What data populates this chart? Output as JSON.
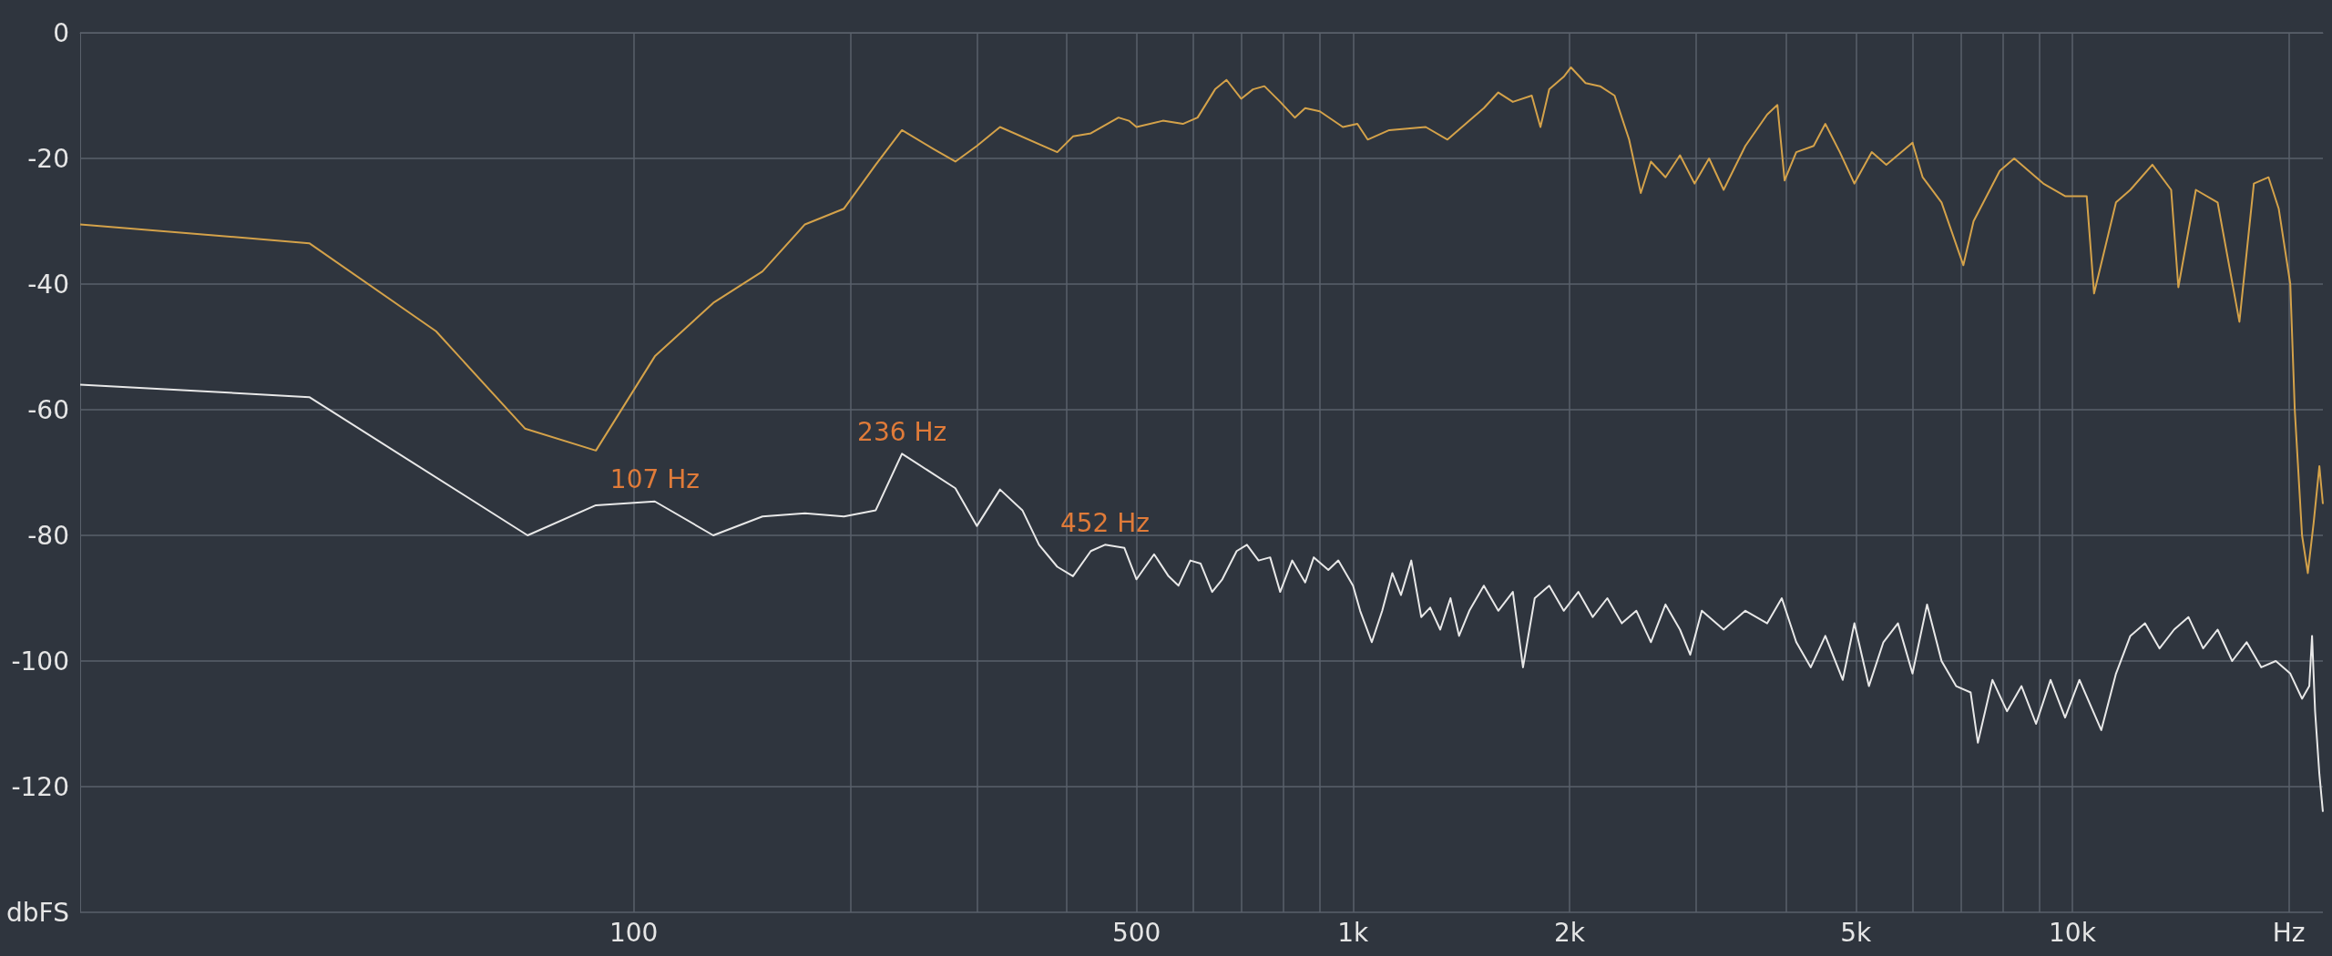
{
  "chart_data": {
    "type": "line",
    "log": "x",
    "grid": true,
    "line_style": "solid",
    "xlim": [
      17,
      22300
    ],
    "ylim": [
      -140,
      0
    ],
    "xticks": [
      {
        "value": 100,
        "label": "100"
      },
      {
        "value": 200,
        "label": null
      },
      {
        "value": 300,
        "label": null
      },
      {
        "value": 400,
        "label": null
      },
      {
        "value": 500,
        "label": "500"
      },
      {
        "value": 600,
        "label": null
      },
      {
        "value": 700,
        "label": null
      },
      {
        "value": 800,
        "label": null
      },
      {
        "value": 900,
        "label": null
      },
      {
        "value": 1000,
        "label": "1k"
      },
      {
        "value": 2000,
        "label": "2k"
      },
      {
        "value": 3000,
        "label": null
      },
      {
        "value": 4000,
        "label": null
      },
      {
        "value": 5000,
        "label": "5k"
      },
      {
        "value": 6000,
        "label": null
      },
      {
        "value": 7000,
        "label": null
      },
      {
        "value": 8000,
        "label": null
      },
      {
        "value": 9000,
        "label": null
      },
      {
        "value": 10000,
        "label": "10k"
      },
      {
        "value": 20000,
        "label": "Hz"
      }
    ],
    "yticks": [
      {
        "value": -140,
        "label": "dbFS"
      },
      -120,
      -100,
      -80,
      -60,
      -40,
      -20,
      0
    ],
    "annotations": [
      {
        "text": "107 Hz",
        "x": 107,
        "y": -74.6
      },
      {
        "text": "236 Hz",
        "x": 236,
        "y": -67
      },
      {
        "text": "452 Hz",
        "x": 452,
        "y": -81.5
      }
    ],
    "series": [
      {
        "color": "#d4a24a",
        "x": [
          17,
          35.4,
          53.1,
          70.6,
          88.6,
          107,
          129,
          151,
          173,
          196,
          217,
          236,
          261,
          280,
          300,
          323,
          388,
          408,
          432,
          472,
          488,
          500,
          544,
          580,
          608,
          643,
          667,
          699,
          726,
          753,
          792,
          830,
          858,
          899,
          968,
          1014,
          1048,
          1123,
          1262,
          1353,
          1451,
          1520,
          1592,
          1668,
          1772,
          1822,
          1874,
          1963,
          2009,
          2105,
          2205,
          2310,
          2420,
          2512,
          2595,
          2719,
          2848,
          2984,
          3126,
          3275,
          3511,
          3765,
          3890,
          3981,
          4132,
          4369,
          4535,
          4751,
          4977,
          5262,
          5513,
          5995,
          6193,
          6579,
          7055,
          7289,
          7925,
          8302,
          9112,
          9770,
          10470,
          10720,
          11500,
          12040,
          12920,
          13720,
          14040,
          14850,
          15920,
          17070,
          17880,
          18740,
          19360,
          20090,
          20380,
          20860,
          21250,
          21650,
          22050,
          22300
        ],
        "values": [
          -30.5,
          -33.5,
          -47.5,
          -63,
          -66.5,
          -51.5,
          -43,
          -38,
          -30.5,
          -28,
          -21,
          -15.5,
          -18.5,
          -20.5,
          -18,
          -15,
          -19,
          -16.5,
          -16,
          -13.5,
          -14,
          -15,
          -14,
          -14.5,
          -13.5,
          -9,
          -7.5,
          -10.5,
          -9,
          -8.5,
          -11,
          -13.5,
          -12,
          -12.5,
          -15,
          -14.5,
          -17,
          -15.5,
          -15,
          -17,
          -14,
          -12,
          -9.5,
          -11,
          -10,
          -15,
          -9,
          -7,
          -5.5,
          -8,
          -8.5,
          -10,
          -17,
          -25.5,
          -20.5,
          -23,
          -19.5,
          -24,
          -20,
          -25,
          -18,
          -13,
          -11.5,
          -23.5,
          -19,
          -18,
          -14.5,
          -19,
          -24,
          -19,
          -21,
          -17.5,
          -23,
          -27,
          -37,
          -30,
          -22,
          -20,
          -24,
          -26,
          -26,
          -41.5,
          -27,
          -25,
          -21,
          -25,
          -40.5,
          -25,
          -27,
          -46,
          -24,
          -23,
          -28,
          -40,
          -60,
          -80,
          -86,
          -78,
          -69,
          -75
        ]
      },
      {
        "color": "#e8e8e8",
        "x": [
          17,
          35.4,
          71.2,
          88.6,
          107,
          129,
          151,
          173,
          196,
          217,
          236,
          280,
          300,
          323,
          347,
          366,
          388,
          408,
          432,
          452,
          481,
          500,
          529,
          554,
          572,
          594,
          614,
          637,
          658,
          689,
          712,
          739,
          767,
          792,
          823,
          858,
          882,
          924,
          954,
          1000,
          1023,
          1062,
          1098,
          1134,
          1166,
          1205,
          1244,
          1280,
          1322,
          1366,
          1404,
          1451,
          1520,
          1592,
          1668,
          1723,
          1789,
          1874,
          1963,
          2057,
          2154,
          2257,
          2364,
          2477,
          2595,
          2719,
          2848,
          2943,
          3054,
          3275,
          3511,
          3765,
          3945,
          4132,
          4329,
          4535,
          4795,
          4977,
          5214,
          5462,
          5722,
          5995,
          6281,
          6579,
          6893,
          7221,
          7390,
          7743,
          8112,
          8498,
          8903,
          9326,
          9770,
          10230,
          10970,
          11500,
          12040,
          12620,
          13220,
          13850,
          14500,
          15200,
          15920,
          16680,
          17470,
          18310,
          19180,
          20090,
          20860,
          21350,
          21540,
          21750,
          22050,
          22300
        ],
        "values": [
          -56,
          -58,
          -80,
          -75.2,
          -74.6,
          -80,
          -77,
          -76.5,
          -77,
          -76,
          -67,
          -72.5,
          -78.5,
          -72.7,
          -76,
          -81.5,
          -85,
          -86.5,
          -82.5,
          -81.5,
          -82,
          -87,
          -83,
          -86.5,
          -88,
          -84,
          -84.5,
          -89,
          -87,
          -82.5,
          -81.5,
          -84,
          -83.5,
          -89,
          -84,
          -87.5,
          -83.5,
          -85.5,
          -84,
          -88,
          -92,
          -97,
          -92,
          -86,
          -89.5,
          -84,
          -93,
          -91.5,
          -95,
          -90,
          -96,
          -92,
          -88,
          -92,
          -89,
          -101,
          -90,
          -88,
          -92,
          -89,
          -93,
          -90,
          -94,
          -92,
          -97,
          -91,
          -95,
          -99,
          -92,
          -95,
          -92,
          -94,
          -90,
          -97,
          -101,
          -96,
          -103,
          -94,
          -104,
          -97,
          -94,
          -102,
          -91,
          -100,
          -104,
          -105,
          -113,
          -103,
          -108,
          -104,
          -110,
          -103,
          -109,
          -103,
          -111,
          -102,
          -96,
          -94,
          -98,
          -95,
          -93,
          -98,
          -95,
          -100,
          -97,
          -101,
          -100,
          -102,
          -106,
          -104,
          -96,
          -108,
          -118,
          -124
        ]
      }
    ]
  }
}
